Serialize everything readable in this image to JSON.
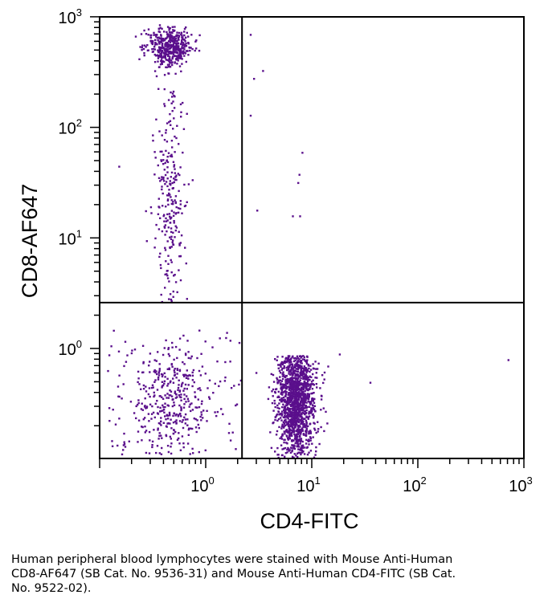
{
  "chart_data": {
    "type": "scatter",
    "subtype": "flow-cytometry-dot-plot",
    "xlabel": "CD4-FITC",
    "ylabel": "CD8-AF647",
    "xscale": "log",
    "yscale": "log",
    "xlim": [
      0.1,
      1000
    ],
    "ylim": [
      0.1,
      1000
    ],
    "x_ticks": [
      {
        "base": "10",
        "exp": "0",
        "value": 1
      },
      {
        "base": "10",
        "exp": "1",
        "value": 10
      },
      {
        "base": "10",
        "exp": "2",
        "value": 100
      },
      {
        "base": "10",
        "exp": "3",
        "value": 1000
      }
    ],
    "y_ticks": [
      {
        "base": "10",
        "exp": "0",
        "value": 1
      },
      {
        "base": "10",
        "exp": "1",
        "value": 10
      },
      {
        "base": "10",
        "exp": "2",
        "value": 100
      },
      {
        "base": "10",
        "exp": "3",
        "value": 1000
      }
    ],
    "quadrant_gate": {
      "x": 2.2,
      "y": 2.6
    },
    "point_color": "#5a0f8c",
    "populations": [
      {
        "approx_center": [
          7.0,
          0.35
        ],
        "approx_count": 1400
      },
      {
        "approx_center": [
          0.45,
          0.35
        ],
        "approx_count": 300
      },
      {
        "approx_center": [
          0.45,
          550
        ],
        "approx_count": 450
      },
      {
        "approx_center": [
          0.45,
          20
        ],
        "approx_count": 250
      }
    ],
    "sparse_points": [
      [
        2.6,
        700
      ],
      [
        2.8,
        280
      ],
      [
        3.4,
        330
      ],
      [
        2.6,
        130
      ],
      [
        3.0,
        18
      ],
      [
        8.0,
        60
      ],
      [
        7.5,
        38
      ],
      [
        7.3,
        32
      ],
      [
        7.6,
        16
      ],
      [
        6.5,
        16
      ],
      [
        35,
        0.5
      ],
      [
        700,
        0.8
      ],
      [
        18,
        0.9
      ],
      [
        14,
        0.7
      ],
      [
        0.15,
        45
      ]
    ]
  },
  "caption": {
    "lines": [
      "Human peripheral blood lymphocytes were stained with Mouse Anti-Human",
      "CD8-AF647 (SB Cat. No. 9536-31) and Mouse Anti-Human CD4-FITC (SB Cat.",
      "No. 9522-02)."
    ]
  }
}
